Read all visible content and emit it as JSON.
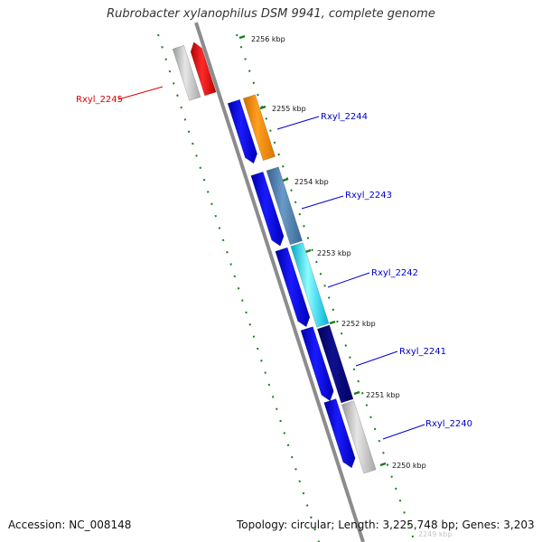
{
  "title": "Rubrobacter xylanophilus DSM 9941, complete genome",
  "footer": {
    "accession": "Accession: NC_008148",
    "summary": "Topology: circular; Length: 3,225,748 bp; Genes: 3,203"
  },
  "ticks": [
    "2256 kbp",
    "2255 kbp",
    "2254 kbp",
    "2253 kbp",
    "2252 kbp",
    "2251 kbp",
    "2250 kbp",
    "2249 kbp"
  ],
  "genes": [
    {
      "label": "Rxyl_2245",
      "color": "#e00000"
    },
    {
      "label": "Rxyl_2244",
      "color": "#0000cc"
    },
    {
      "label": "Rxyl_2243",
      "color": "#0000cc"
    },
    {
      "label": "Rxyl_2242",
      "color": "#0000cc"
    },
    {
      "label": "Rxyl_2241",
      "color": "#0000cc"
    },
    {
      "label": "Rxyl_2240",
      "color": "#0000cc"
    }
  ],
  "colors": {
    "backbone": "#8c8c8c",
    "tick_marks": "#1f7a1f",
    "feature_red": "#ee0000",
    "feature_blue": "#0000ee",
    "feature_orange": "#ff8c00",
    "feature_steelblue": "#4f7fb0",
    "feature_cyan": "#00e8ff",
    "feature_navy": "#000080",
    "feature_grey": "#c0c0c0"
  }
}
